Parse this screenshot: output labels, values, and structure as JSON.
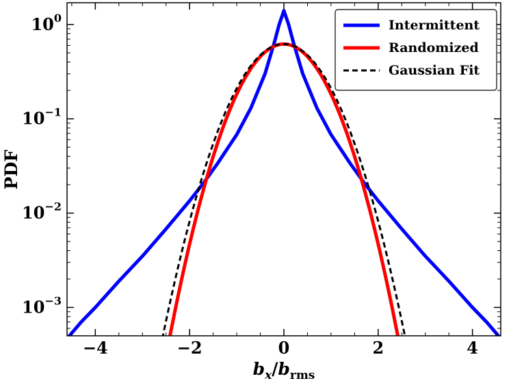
{
  "chart_data": {
    "type": "line",
    "title": "",
    "xlabel": {
      "main": "b",
      "sub1": "x",
      "slash": "/",
      "main2": "b",
      "sub2": "rms"
    },
    "ylabel": "PDF",
    "xlim": [
      -4.6,
      4.6
    ],
    "ylim": [
      0.0005,
      1.7
    ],
    "yscale": "log",
    "x_ticks": [
      {
        "value": -4,
        "label": "−4"
      },
      {
        "value": -2,
        "label": "−2"
      },
      {
        "value": 0,
        "label": "0"
      },
      {
        "value": 2,
        "label": "2"
      },
      {
        "value": 4,
        "label": "4"
      }
    ],
    "y_ticks": [
      {
        "value": 1,
        "base": "10",
        "exp": "0"
      },
      {
        "value": 0.1,
        "base": "10",
        "exp": "−1"
      },
      {
        "value": 0.01,
        "base": "10",
        "exp": "−2"
      },
      {
        "value": 0.001,
        "base": "10",
        "exp": "−3"
      }
    ],
    "grid": false,
    "legend_position": "top-right",
    "series": [
      {
        "name": "Intermittent",
        "color": "#0000ff",
        "style": "solid",
        "x": [
          -4.55,
          -4.3,
          -4.0,
          -3.5,
          -3.0,
          -2.5,
          -2.0,
          -1.7,
          -1.4,
          -1.0,
          -0.7,
          -0.4,
          -0.2,
          -0.1,
          0.0,
          0.1,
          0.2,
          0.4,
          0.7,
          1.0,
          1.4,
          1.7,
          2.0,
          2.5,
          3.0,
          3.5,
          4.0,
          4.3,
          4.55
        ],
        "y": [
          0.0005,
          0.0007,
          0.001,
          0.0019,
          0.0035,
          0.0068,
          0.0135,
          0.021,
          0.034,
          0.068,
          0.13,
          0.3,
          0.65,
          1.0,
          1.4,
          1.0,
          0.65,
          0.3,
          0.13,
          0.068,
          0.034,
          0.021,
          0.0135,
          0.0068,
          0.0035,
          0.0019,
          0.001,
          0.0007,
          0.0005
        ]
      },
      {
        "name": "Randomized",
        "color": "#ff0000",
        "style": "solid",
        "gaussian": {
          "amplitude": 0.62,
          "sigma": 0.64
        },
        "range": [
          -2.47,
          2.47
        ]
      },
      {
        "name": "Gaussian Fit",
        "color": "#000000",
        "style": "dashed",
        "gaussian": {
          "amplitude": 0.62,
          "sigma": 0.68
        },
        "range": [
          -2.58,
          2.58
        ]
      }
    ]
  }
}
